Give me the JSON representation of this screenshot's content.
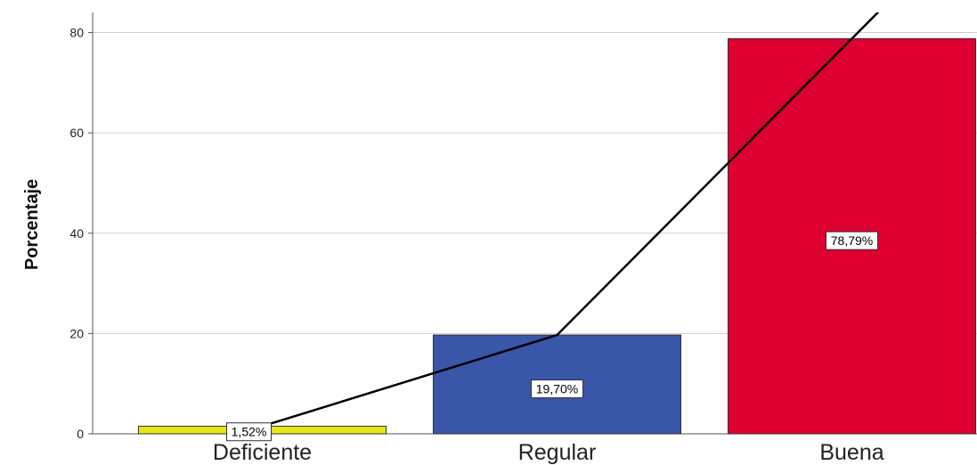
{
  "chart_data": {
    "type": "bar",
    "title": "",
    "xlabel": "",
    "ylabel": "Porcentaje",
    "categories": [
      "Deficiente",
      "Regular",
      "Buena"
    ],
    "values": [
      1.52,
      19.7,
      78.79
    ],
    "data_labels": [
      "1,52%",
      "19,70%",
      "78,79%"
    ],
    "bar_colors": [
      "#e6e61a",
      "#3a56a8",
      "#de0031"
    ],
    "line_values": [
      1.52,
      19.7,
      78.79
    ],
    "line_color": "#000000",
    "ylim": [
      0,
      84
    ],
    "yticks": [
      0,
      20,
      40,
      60,
      80
    ],
    "grid": true
  }
}
